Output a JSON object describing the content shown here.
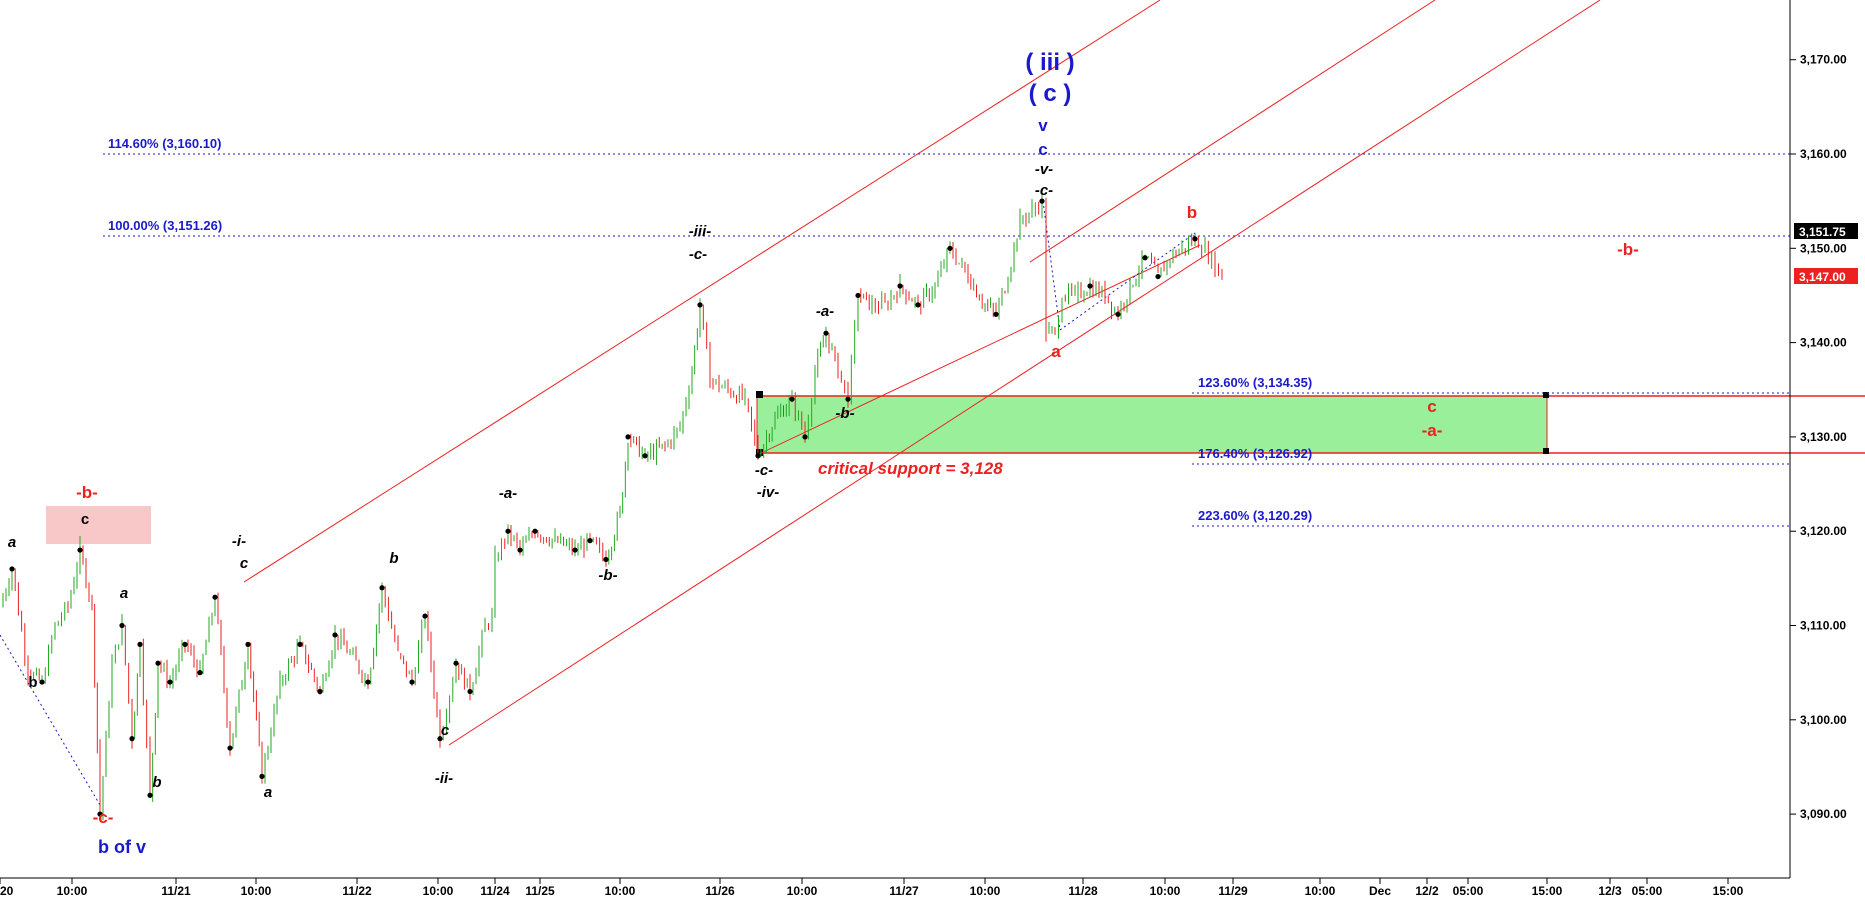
{
  "chart_data": {
    "type": "candlestick",
    "title": "",
    "xlabel": "",
    "ylabel": "",
    "ylim": [
      3082,
      3177
    ],
    "grid": false,
    "colors": {
      "up": "#22aa22",
      "down": "#ee2222",
      "fib": "#1a1acc",
      "channel": "#ee2020",
      "support_zone": "#9af09a",
      "target_zone": "#f8c8c8"
    },
    "y_ticks": [
      "3,170.00",
      "3,160.00",
      "3,150.00",
      "3,140.00",
      "3,130.00",
      "3,120.00",
      "3,110.00",
      "3,100.00",
      "3,090.00"
    ],
    "y_tick_values": [
      3170,
      3160,
      3150,
      3140,
      3130,
      3120,
      3110,
      3100,
      3090
    ],
    "x_ticks": [
      "20",
      "10:00",
      "11/21",
      "10:00",
      "11/22",
      "10:00",
      "11/24",
      "11/25",
      "10:00",
      "11/26",
      "10:00",
      "11/27",
      "10:00",
      "11/28",
      "10:00",
      "11/29",
      "10:00",
      "Dec",
      "12/2",
      "05:00",
      "15:00",
      "12/3",
      "05:00",
      "15:00"
    ],
    "x_tick_positions": [
      0,
      72,
      176,
      256,
      357,
      438,
      495,
      540,
      620,
      720,
      802,
      904,
      985,
      1083,
      1165,
      1233,
      1320,
      1380,
      1427,
      1468,
      1547,
      1610,
      1647,
      1728
    ],
    "last_price": "3,151.75",
    "current_price": "3,147.00",
    "fib_levels": [
      {
        "label": "114.60% (3,160.10)",
        "value": 3160.1
      },
      {
        "label": "100.00% (3,151.26)",
        "value": 3151.26
      },
      {
        "label": "123.60% (3,134.35)",
        "value": 3134.35
      },
      {
        "label": "176.40% (3,126.92)",
        "value": 3126.92
      },
      {
        "label": "223.60% (3,120.29)",
        "value": 3120.29
      }
    ],
    "support_zone": {
      "low": 3128.2,
      "high": 3134.3
    },
    "annotation": "critical support  = 3,128",
    "price_path": [
      [
        0,
        3112
      ],
      [
        12,
        3116
      ],
      [
        28,
        3105
      ],
      [
        42,
        3104
      ],
      [
        55,
        3110
      ],
      [
        68,
        3112
      ],
      [
        80,
        3118
      ],
      [
        92,
        3112
      ],
      [
        100,
        3090
      ],
      [
        112,
        3106
      ],
      [
        122,
        3110
      ],
      [
        132,
        3098
      ],
      [
        140,
        3108
      ],
      [
        150,
        3092
      ],
      [
        158,
        3106
      ],
      [
        170,
        3104
      ],
      [
        185,
        3108
      ],
      [
        200,
        3105
      ],
      [
        215,
        3113
      ],
      [
        230,
        3097
      ],
      [
        248,
        3108
      ],
      [
        262,
        3094
      ],
      [
        280,
        3104
      ],
      [
        300,
        3108
      ],
      [
        320,
        3103
      ],
      [
        335,
        3109
      ],
      [
        350,
        3107
      ],
      [
        368,
        3104
      ],
      [
        382,
        3114
      ],
      [
        398,
        3107
      ],
      [
        412,
        3104
      ],
      [
        425,
        3111
      ],
      [
        440,
        3098
      ],
      [
        456,
        3106
      ],
      [
        470,
        3103
      ],
      [
        485,
        3110
      ],
      [
        492,
        3111
      ],
      [
        495,
        3117
      ],
      [
        508,
        3120
      ],
      [
        520,
        3118
      ],
      [
        535,
        3120
      ],
      [
        555,
        3119
      ],
      [
        575,
        3118
      ],
      [
        590,
        3119
      ],
      [
        606,
        3117
      ],
      [
        620,
        3122
      ],
      [
        628,
        3130
      ],
      [
        645,
        3128
      ],
      [
        665,
        3129
      ],
      [
        680,
        3131
      ],
      [
        692,
        3137
      ],
      [
        700,
        3144
      ],
      [
        710,
        3136
      ],
      [
        728,
        3135
      ],
      [
        745,
        3134
      ],
      [
        758,
        3128
      ],
      [
        775,
        3132
      ],
      [
        792,
        3134
      ],
      [
        805,
        3130
      ],
      [
        815,
        3137
      ],
      [
        826,
        3141
      ],
      [
        838,
        3137
      ],
      [
        848,
        3134
      ],
      [
        858,
        3145
      ],
      [
        872,
        3144
      ],
      [
        885,
        3144
      ],
      [
        900,
        3146
      ],
      [
        918,
        3144
      ],
      [
        935,
        3146
      ],
      [
        950,
        3150
      ],
      [
        968,
        3147
      ],
      [
        985,
        3144
      ],
      [
        996,
        3143
      ],
      [
        1008,
        3147
      ],
      [
        1020,
        3153
      ],
      [
        1032,
        3154
      ],
      [
        1042,
        3155
      ],
      [
        1046,
        3141
      ],
      [
        1055,
        3141
      ],
      [
        1062,
        3145
      ],
      [
        1075,
        3145
      ],
      [
        1090,
        3146
      ],
      [
        1105,
        3145
      ],
      [
        1118,
        3143
      ],
      [
        1130,
        3146
      ],
      [
        1145,
        3149
      ],
      [
        1158,
        3147
      ],
      [
        1170,
        3149
      ],
      [
        1182,
        3150
      ],
      [
        1195,
        3151
      ],
      [
        1205,
        3150
      ],
      [
        1215,
        3148
      ],
      [
        1222,
        3147
      ]
    ],
    "wave_labels": [
      {
        "text": "( iii )",
        "x": 1050,
        "y": 70,
        "color": "#1a1acc",
        "size": 24
      },
      {
        "text": "( c )",
        "x": 1050,
        "y": 101,
        "color": "#1a1acc",
        "size": 24
      },
      {
        "text": "v",
        "x": 1043,
        "y": 131,
        "color": "#1a1acc",
        "size": 17
      },
      {
        "text": "c",
        "x": 1043,
        "y": 155,
        "color": "#1a1acc",
        "size": 17
      },
      {
        "text": "-v-",
        "x": 1044,
        "y": 174,
        "color": "#000000",
        "size": 15,
        "italic": true
      },
      {
        "text": "-c-",
        "x": 1044,
        "y": 195,
        "color": "#000000",
        "size": 15,
        "italic": true
      },
      {
        "text": "-iii-",
        "x": 700,
        "y": 236,
        "color": "#000000",
        "size": 15,
        "italic": true
      },
      {
        "text": "-c-",
        "x": 698,
        "y": 259,
        "color": "#000000",
        "size": 15,
        "italic": true
      },
      {
        "text": "b",
        "x": 1192,
        "y": 218,
        "color": "#ee2020",
        "size": 17
      },
      {
        "text": "-b-",
        "x": 1628,
        "y": 255,
        "color": "#ee2020",
        "size": 17
      },
      {
        "text": "-a-",
        "x": 825,
        "y": 316,
        "color": "#000000",
        "size": 15,
        "italic": true
      },
      {
        "text": "a",
        "x": 1056,
        "y": 357,
        "color": "#ee2020",
        "size": 17
      },
      {
        "text": "-b-",
        "x": 845,
        "y": 418,
        "color": "#000000",
        "size": 15,
        "italic": true
      },
      {
        "text": "c",
        "x": 1432,
        "y": 412,
        "color": "#ee2020",
        "size": 17
      },
      {
        "text": "-a-",
        "x": 1432,
        "y": 436,
        "color": "#ee2020",
        "size": 17
      },
      {
        "text": "-c-",
        "x": 764,
        "y": 475,
        "color": "#000000",
        "size": 15,
        "italic": true
      },
      {
        "text": "-iv-",
        "x": 768,
        "y": 497,
        "color": "#000000",
        "size": 15,
        "italic": true
      },
      {
        "text": "-a-",
        "x": 508,
        "y": 498,
        "color": "#000000",
        "size": 15,
        "italic": true
      },
      {
        "text": "-b-",
        "x": 608,
        "y": 580,
        "color": "#000000",
        "size": 15,
        "italic": true
      },
      {
        "text": "-b-",
        "x": 87,
        "y": 498,
        "color": "#ee2020",
        "size": 17
      },
      {
        "text": "c",
        "x": 85,
        "y": 524,
        "color": "#000000",
        "size": 15
      },
      {
        "text": "a",
        "x": 12,
        "y": 547,
        "color": "#000000",
        "size": 15,
        "italic": true
      },
      {
        "text": "-i-",
        "x": 239,
        "y": 546,
        "color": "#000000",
        "size": 15,
        "italic": true
      },
      {
        "text": "c",
        "x": 244,
        "y": 568,
        "color": "#000000",
        "size": 15,
        "italic": true
      },
      {
        "text": "b",
        "x": 394,
        "y": 563,
        "color": "#000000",
        "size": 15,
        "italic": true
      },
      {
        "text": "a",
        "x": 124,
        "y": 598,
        "color": "#000000",
        "size": 15,
        "italic": true
      },
      {
        "text": "b",
        "x": 33,
        "y": 687,
        "color": "#000000",
        "size": 15
      },
      {
        "text": "c",
        "x": 445,
        "y": 735,
        "color": "#000000",
        "size": 15,
        "italic": true
      },
      {
        "text": "-ii-",
        "x": 444,
        "y": 783,
        "color": "#000000",
        "size": 15,
        "italic": true
      },
      {
        "text": "a",
        "x": 268,
        "y": 797,
        "color": "#000000",
        "size": 15,
        "italic": true
      },
      {
        "text": "b",
        "x": 157,
        "y": 787,
        "color": "#000000",
        "size": 15,
        "italic": true
      },
      {
        "text": "-c-",
        "x": 103,
        "y": 823,
        "color": "#ee2020",
        "size": 17
      },
      {
        "text": "b  of  v",
        "x": 122,
        "y": 853,
        "color": "#1a1acc",
        "size": 18
      }
    ]
  }
}
